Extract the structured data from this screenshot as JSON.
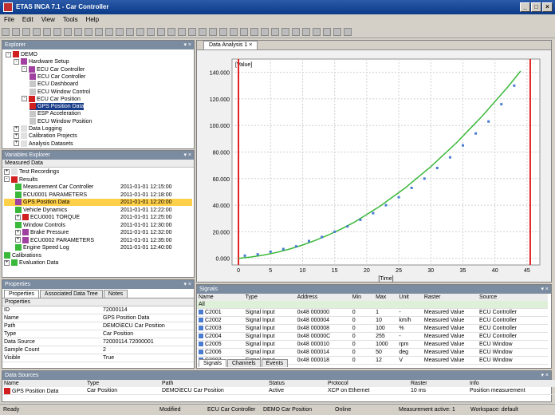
{
  "window": {
    "title": "ETAS INCA 7.1 - Car Controller"
  },
  "menu": [
    "File",
    "Edit",
    "View",
    "Tools",
    "Help"
  ],
  "toolbar_count": 34,
  "explorer": {
    "title": "Explorer",
    "items": [
      {
        "label": "DEMO",
        "color": "#d02020",
        "level": 0,
        "expand": "-"
      },
      {
        "label": "Hardware Setup",
        "color": "#a040a0",
        "level": 1,
        "expand": "-"
      },
      {
        "label": "ECU Car Controller",
        "color": "#a040a0",
        "level": 2,
        "expand": "-"
      },
      {
        "label": "ECU Car Controller",
        "color": "#a040a0",
        "level": 3,
        "expand": ""
      },
      {
        "label": "ECU Dashboard",
        "color": "#c8c8c8",
        "level": 3,
        "expand": ""
      },
      {
        "label": "ECU Window Control",
        "color": "#c8c8c8",
        "level": 3,
        "expand": ""
      },
      {
        "label": "ECU Car Position",
        "color": "#d02020",
        "level": 2,
        "expand": "-"
      },
      {
        "label": "GPS Position Data",
        "color": "#d02020",
        "level": 3,
        "expand": "",
        "selected": true
      },
      {
        "label": "ESP Acceleration",
        "color": "#c8c8c8",
        "level": 3,
        "expand": ""
      },
      {
        "label": "ECU Window Position",
        "color": "#c8c8c8",
        "level": 3,
        "expand": ""
      },
      {
        "label": "Data Logging",
        "color": "#e0e0e0",
        "level": 1,
        "expand": "+"
      },
      {
        "label": "Calibration Projects",
        "color": "#e0e0e0",
        "level": 1,
        "expand": "+"
      },
      {
        "label": "Analysis Datasets",
        "color": "#e0e0e0",
        "level": 1,
        "expand": "+"
      }
    ]
  },
  "variables": {
    "title": "Variables Explorer",
    "header": "Measured Data",
    "rows": [
      {
        "name": "Test Recordings",
        "time": "",
        "color": "#e0e0e0",
        "indent": 0,
        "expand": "+"
      },
      {
        "name": "Results",
        "time": "",
        "color": "#d02020",
        "indent": 0,
        "expand": "-"
      },
      {
        "name": "Measurement Car Controller",
        "time": "2011-01-01 12:15:00",
        "color": "#3ab83a",
        "indent": 1,
        "expand": ""
      },
      {
        "name": "ECU0001 PARAMETERS",
        "time": "2011-01-01 12:18:00",
        "color": "#3ab83a",
        "indent": 1,
        "expand": ""
      },
      {
        "name": "GPS Position Data",
        "time": "2011-01-01 12:20:00",
        "color": "#a040a0",
        "indent": 1,
        "expand": "",
        "selected": true
      },
      {
        "name": "Vehicle Dynamics",
        "time": "2011-01-01 12:22:00",
        "color": "#3ab83a",
        "indent": 1,
        "expand": ""
      },
      {
        "name": "ECU0001 TORQUE",
        "time": "2011-01-01 12:25:00",
        "color": "#d02020",
        "indent": 1,
        "expand": "+"
      },
      {
        "name": "Window Controls",
        "time": "2011-01-01 12:30:00",
        "color": "#3ab83a",
        "indent": 1,
        "expand": ""
      },
      {
        "name": "Brake Pressure",
        "time": "2011-01-01 12:32:00",
        "color": "#a040a0",
        "indent": 1,
        "expand": "+"
      },
      {
        "name": "ECU0002 PARAMETERS",
        "time": "2011-01-01 12:35:00",
        "color": "#a040a0",
        "indent": 1,
        "expand": "+"
      },
      {
        "name": "Engine Speed Log",
        "time": "2011-01-01 12:40:00",
        "color": "#3ab83a",
        "indent": 1,
        "expand": ""
      },
      {
        "name": "Calibrations",
        "time": "",
        "color": "#3ab83a",
        "indent": 0,
        "expand": ""
      },
      {
        "name": "Evaluation Data",
        "time": "",
        "color": "#3ab83a",
        "indent": 0,
        "expand": "+"
      }
    ]
  },
  "properties": {
    "title": "Properties",
    "tabs": [
      "Properties",
      "Associated Data Tree",
      "Notes"
    ],
    "header": "Properties",
    "rows": [
      {
        "key": "ID",
        "value": "72000114"
      },
      {
        "key": "Name",
        "value": "GPS Position Data"
      },
      {
        "key": "Path",
        "value": "DEMO\\ECU Car Position"
      },
      {
        "key": "Type",
        "value": "Car Position"
      },
      {
        "key": "Data Source",
        "value": "72000114.72000001"
      },
      {
        "key": "Sample Count",
        "value": "2"
      },
      {
        "key": "Visible",
        "value": "True"
      }
    ]
  },
  "chart_tab": {
    "label": "Data Analysis 1"
  },
  "chart_data": {
    "type": "scatter",
    "title": "",
    "ylabel": "[Value]",
    "xlabel": "[Time]",
    "xlim": [
      -1,
      47
    ],
    "ylim": [
      -5,
      150
    ],
    "x_ticks": [
      0,
      5,
      10,
      15,
      20,
      25,
      30,
      35,
      40,
      45
    ],
    "x_tick_labels": [
      "0",
      "5",
      "10",
      "15",
      "20",
      "25",
      "30",
      "35",
      "40",
      "45"
    ],
    "y_ticks": [
      0,
      20,
      40,
      60,
      80,
      100,
      120,
      140
    ],
    "y_tick_labels": [
      "0.000",
      "20.000",
      "40.000",
      "60.000",
      "80.000",
      "100.000",
      "120.000",
      "140.000"
    ],
    "cursor_left": 0,
    "cursor_right": 45.5,
    "grid": true,
    "line_color": "#3ab83a",
    "marker_color": "#4a7bd0",
    "cursor_color": "#e02020",
    "series": [
      {
        "x": [
          1,
          3,
          5,
          7,
          9,
          11,
          13,
          15,
          17,
          19,
          21,
          23,
          25,
          27,
          29,
          31,
          33,
          35,
          37,
          39,
          41,
          43
        ],
        "y": [
          2,
          3,
          5,
          7,
          9,
          13,
          16,
          20,
          24,
          29,
          34,
          40,
          46,
          53,
          60,
          68,
          76,
          85,
          94,
          103,
          116,
          130
        ]
      }
    ],
    "fit": {
      "x": [
        0,
        2,
        4,
        6,
        8,
        10,
        12,
        14,
        16,
        18,
        20,
        22,
        24,
        26,
        28,
        30,
        32,
        34,
        36,
        38,
        40,
        42,
        44
      ],
      "y": [
        0,
        1,
        2.5,
        4.5,
        7,
        10,
        13.5,
        17.5,
        22,
        27,
        33,
        39,
        46,
        53,
        61,
        69,
        78,
        87,
        97,
        107,
        118,
        129,
        141
      ]
    }
  },
  "signals": {
    "title": "Signals",
    "columns": [
      "Name",
      "Type",
      "Address",
      "Min",
      "Max",
      "Unit",
      "Raster",
      "Source"
    ],
    "rows": [
      {
        "name": "All",
        "type": "",
        "address": "",
        "min": "",
        "max": "",
        "unit": "",
        "raster": "",
        "source": ""
      },
      {
        "name": "C2001",
        "type": "Signal Input",
        "address": "0x48 000000",
        "min": "0",
        "max": "1",
        "unit": "-",
        "raster": "Measured Value",
        "source": "ECU Controller"
      },
      {
        "name": "C2002",
        "type": "Signal Input",
        "address": "0x48 000004",
        "min": "0",
        "max": "10",
        "unit": "km/h",
        "raster": "Measured Value",
        "source": "ECU Controller"
      },
      {
        "name": "C2003",
        "type": "Signal Input",
        "address": "0x48 000008",
        "min": "0",
        "max": "100",
        "unit": "%",
        "raster": "Measured Value",
        "source": "ECU Controller"
      },
      {
        "name": "C2004",
        "type": "Signal Input",
        "address": "0x48 00000C",
        "min": "0",
        "max": "255",
        "unit": "-",
        "raster": "Measured Value",
        "source": "ECU Controller"
      },
      {
        "name": "C2005",
        "type": "Signal Input",
        "address": "0x48 000010",
        "min": "0",
        "max": "1000",
        "unit": "rpm",
        "raster": "Measured Value",
        "source": "ECU Window"
      },
      {
        "name": "C2006",
        "type": "Signal Input",
        "address": "0x48 000014",
        "min": "0",
        "max": "50",
        "unit": "deg",
        "raster": "Measured Value",
        "source": "ECU Window"
      },
      {
        "name": "C2007",
        "type": "Signal Input",
        "address": "0x48 000018",
        "min": "0",
        "max": "12",
        "unit": "V",
        "raster": "Measured Value",
        "source": "ECU Window"
      }
    ],
    "tabs": [
      "Signals",
      "Channels",
      "Events"
    ]
  },
  "bottom": {
    "title": "Data Sources",
    "columns": [
      "Name",
      "Type",
      "Path",
      "Status",
      "Protocol",
      "Raster",
      "Info"
    ],
    "row": {
      "name": "GPS Position Data",
      "type": "Car Position",
      "path": "DEMO\\ECU Car Position",
      "status": "Active",
      "protocol": "XCP on Ethernet",
      "raster": "10 ms",
      "info": "Position measurement"
    }
  },
  "status": {
    "left": "Ready",
    "items": [
      "Modified",
      "ECU Car Controller",
      "DEMO Car Position",
      "Online",
      "Measurement active: 1",
      "Workspace: default"
    ]
  }
}
